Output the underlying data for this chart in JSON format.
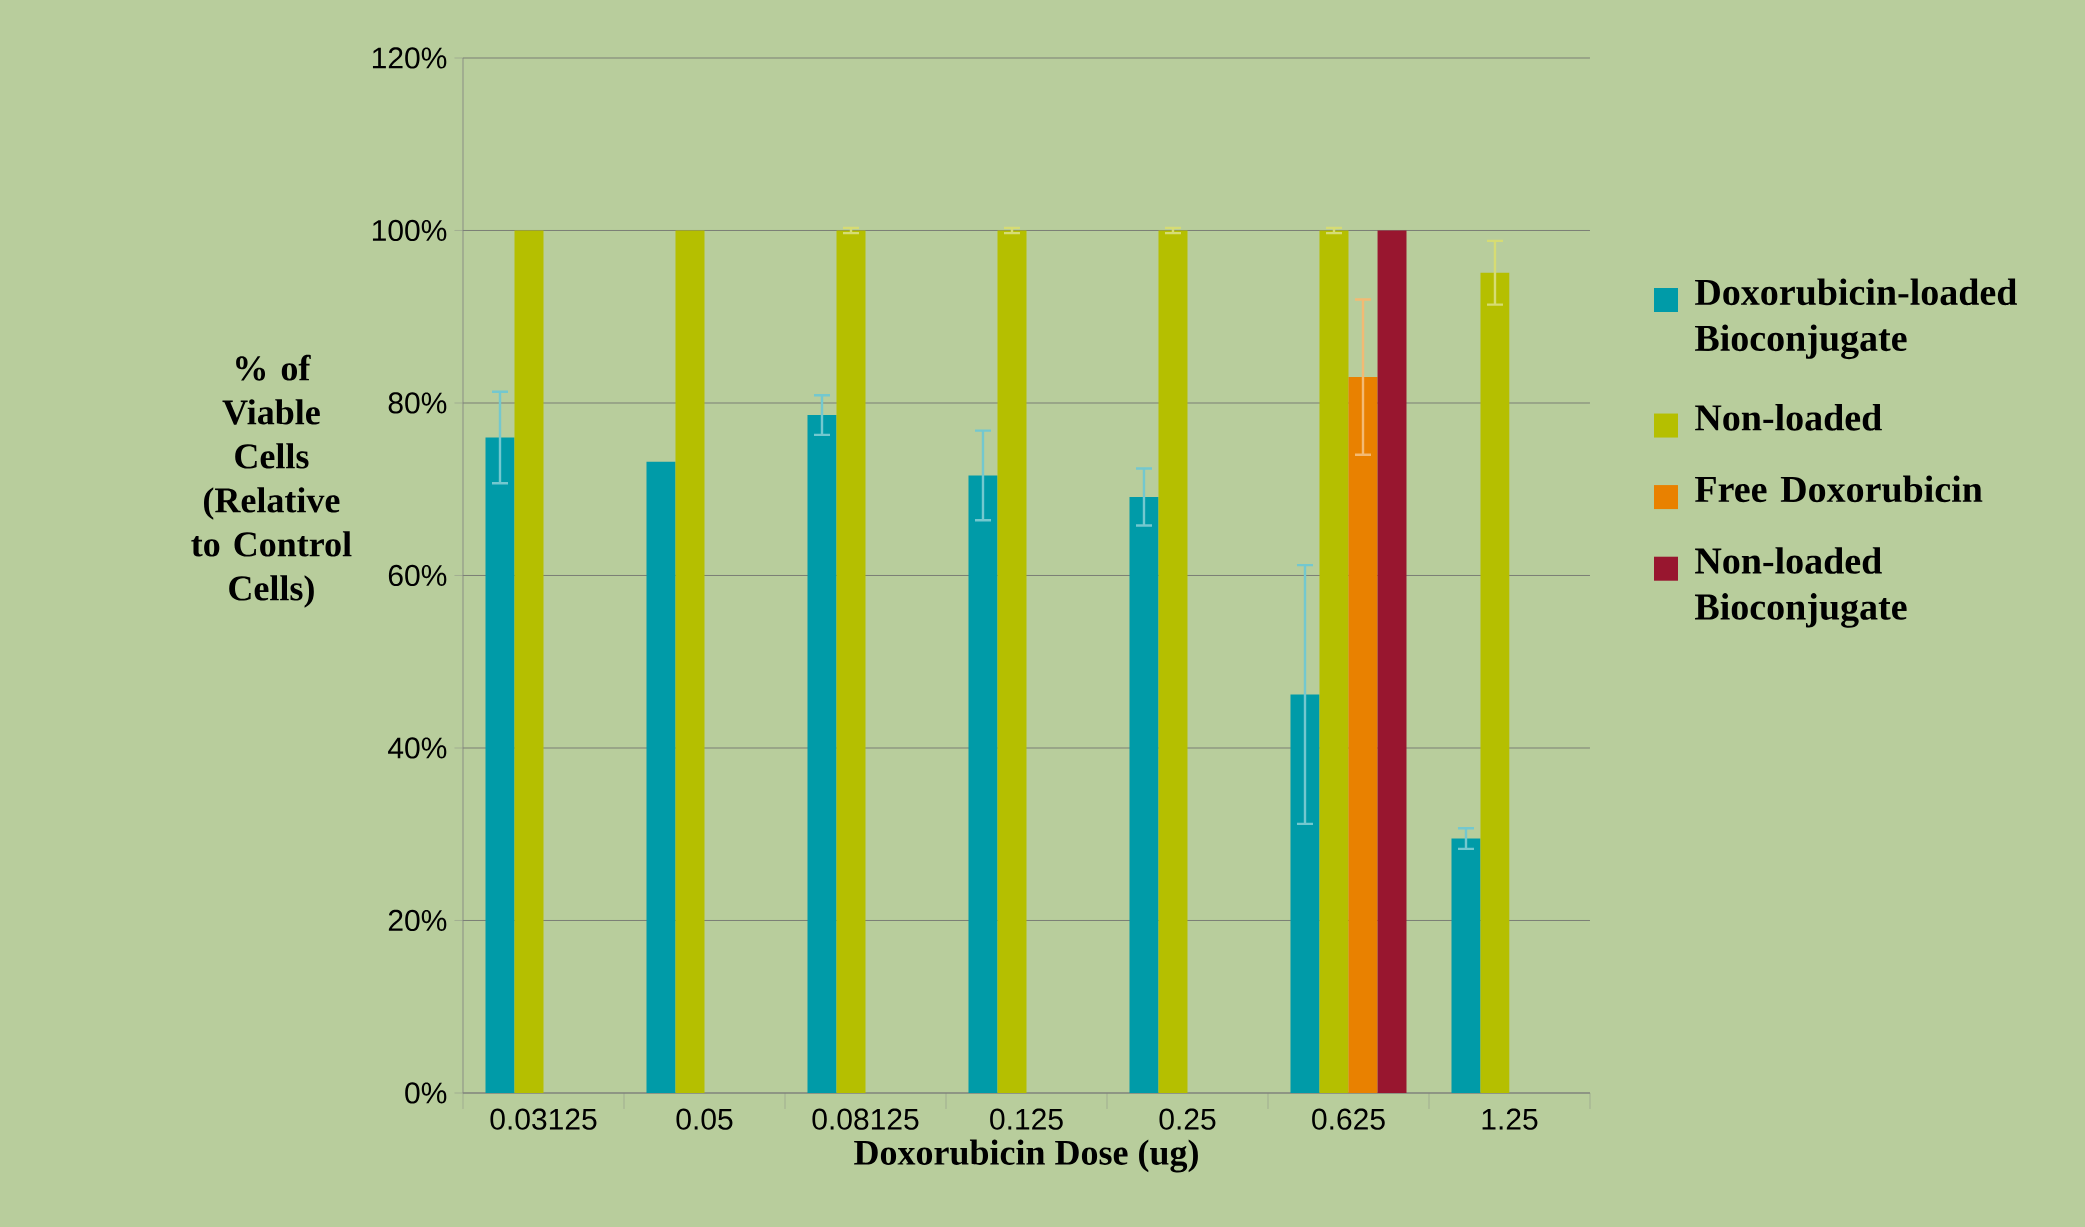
{
  "chart_data": {
    "type": "bar",
    "xlabel": "Doxorubicin Dose (ug)",
    "ylabel": "% of Viable Cells (Relative to Control Cells)",
    "categories": [
      "0.03125",
      "0.05",
      "0.08125",
      "0.125",
      "0.25",
      "0.625",
      "1.25"
    ],
    "series": [
      {
        "name": "Doxorubicin-loaded Bioconjugate",
        "color": "#009ba8",
        "values": [
          76.0,
          73.2,
          78.6,
          71.6,
          69.1,
          46.2,
          29.5
        ],
        "errors": [
          5.3,
          null,
          2.3,
          5.2,
          3.3,
          15.0,
          1.2
        ]
      },
      {
        "name": "Non-loaded",
        "color": "#b5bf00",
        "values": [
          100,
          100,
          100,
          100,
          100,
          100,
          95.1
        ],
        "errors": [
          null,
          null,
          0.3,
          0.3,
          0.3,
          0.3,
          3.7
        ]
      },
      {
        "name": "Free Doxorubicin",
        "color": "#e98100",
        "values": [
          null,
          null,
          null,
          null,
          null,
          83.0,
          null
        ],
        "errors": [
          null,
          null,
          null,
          null,
          null,
          9.0,
          null
        ]
      },
      {
        "name": "Non-loaded Bioconjugate",
        "color": "#98162f",
        "values": [
          null,
          null,
          null,
          null,
          null,
          100,
          null
        ]
      }
    ],
    "ylim": [
      0,
      120
    ],
    "yticks": [
      {
        "value": 0,
        "label": "0%"
      },
      {
        "value": 20,
        "label": "20%"
      },
      {
        "value": 40,
        "label": "40%"
      },
      {
        "value": 60,
        "label": "60%"
      },
      {
        "value": 80,
        "label": "80%"
      },
      {
        "value": 100,
        "label": "100%"
      },
      {
        "value": 120,
        "label": "120%"
      }
    ],
    "grid": "y",
    "legend": "right"
  }
}
